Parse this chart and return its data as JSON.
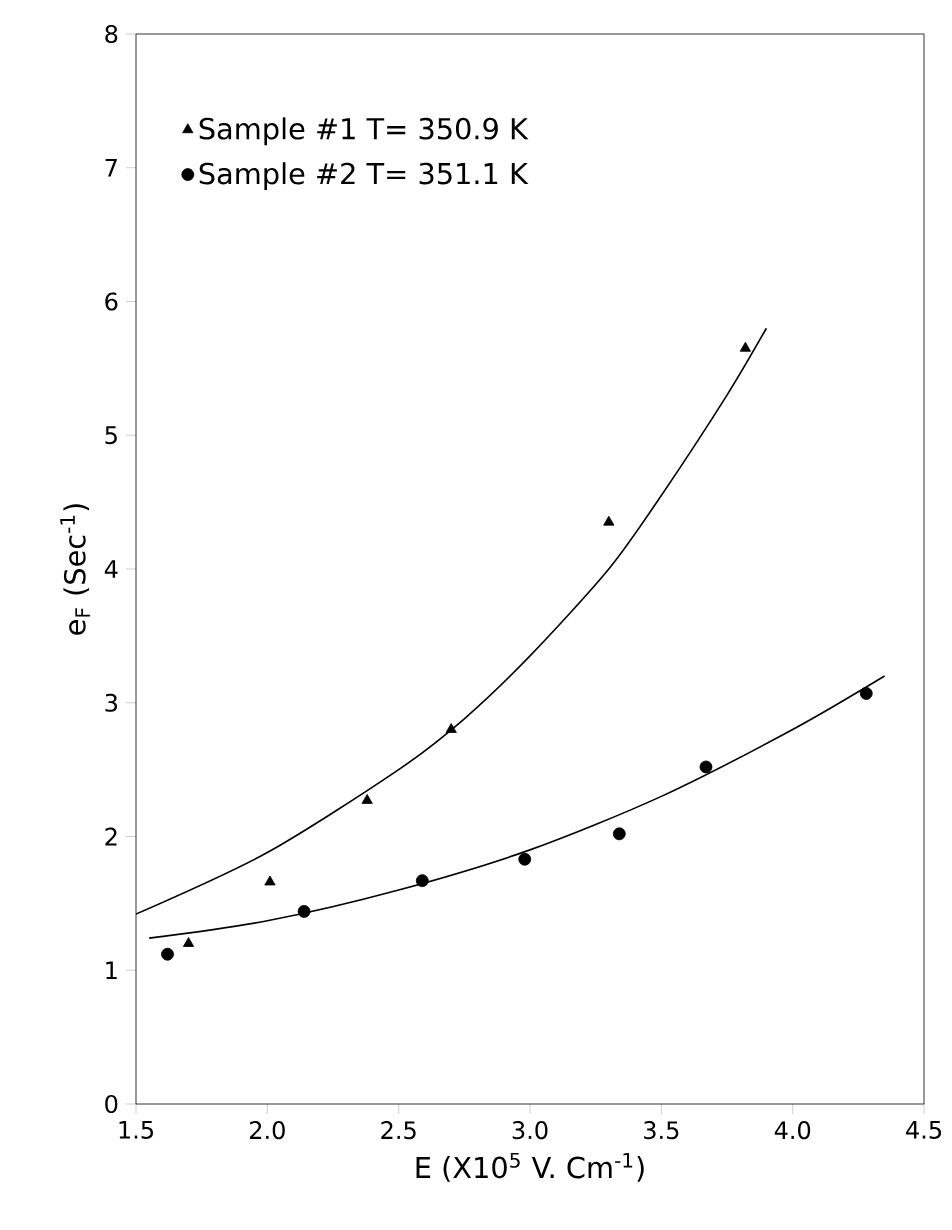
{
  "chart_data": {
    "type": "scatter",
    "xlabel": "E (X10$^{5}$ V. Cm$^{-1}$)",
    "ylabel": "e$_{F}$ (Sec$^{-1}$)",
    "xlim": [
      1.5,
      4.5
    ],
    "ylim": [
      0,
      8
    ],
    "xticks": [
      {
        "value": 1.5,
        "label": "1.5"
      },
      {
        "value": 2,
        "label": "2.0"
      },
      {
        "value": 2.5,
        "label": "2.5"
      },
      {
        "value": 3,
        "label": "3.0"
      },
      {
        "value": 3.5,
        "label": "3.5"
      },
      {
        "value": 4,
        "label": "4.0"
      },
      {
        "value": 4.5,
        "label": "4.5"
      }
    ],
    "yticks": [
      0,
      1,
      2,
      3,
      4,
      5,
      6,
      7,
      8
    ],
    "grid": false,
    "legend": "top left",
    "series": [
      {
        "name": "Sample #1  T= 350.9 K",
        "marker": "triangle",
        "color": "#000000",
        "x": [
          1.7,
          2.01,
          2.38,
          2.7,
          3.3,
          3.82
        ],
        "values": [
          1.2,
          1.66,
          2.27,
          2.8,
          4.35,
          5.65
        ]
      },
      {
        "name": "Sample #2  T= 351.1 K",
        "marker": "circle",
        "color": "#000000",
        "x": [
          1.62,
          2.14,
          2.59,
          2.98,
          3.34,
          3.67,
          4.28
        ],
        "values": [
          1.12,
          1.44,
          1.67,
          1.83,
          2.02,
          2.52,
          3.07
        ]
      },
      {
        "type": "line",
        "line_style": "solid",
        "color": "#000000",
        "x": [
          1.5,
          2.0,
          2.5,
          2.75,
          3.0,
          3.3,
          3.5,
          3.75,
          3.9
        ],
        "values": [
          1.42,
          1.88,
          2.5,
          2.88,
          3.35,
          4.0,
          4.55,
          5.3,
          5.8
        ]
      },
      {
        "type": "line",
        "line_style": "solid",
        "color": "#000000",
        "x": [
          1.55,
          2.0,
          2.5,
          3.0,
          3.5,
          4.0,
          4.35
        ],
        "values": [
          1.24,
          1.37,
          1.6,
          1.9,
          2.3,
          2.8,
          3.2
        ]
      }
    ]
  }
}
